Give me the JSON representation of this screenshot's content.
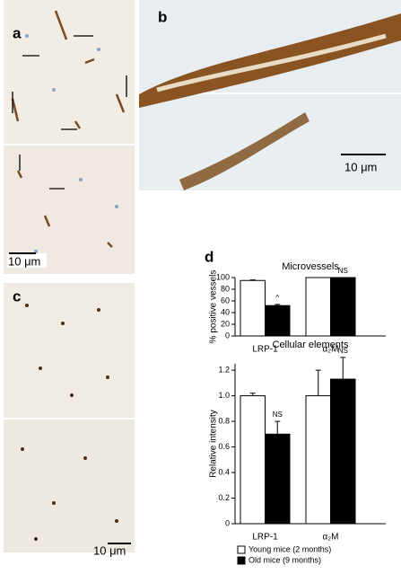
{
  "panels": {
    "a": {
      "label": "a",
      "scale": "10 μm"
    },
    "b": {
      "label": "b",
      "scale": "10 μm"
    },
    "c": {
      "label": "c",
      "scale": "10 μm"
    },
    "d": {
      "label": "d"
    }
  },
  "chart_data": [
    {
      "type": "bar",
      "title": "Microvessels",
      "y_label": "% positive vessels",
      "categories": [
        "LRP-1",
        "α₂M"
      ],
      "series": [
        {
          "name": "Young mice (2 months)",
          "color": "#ffffff",
          "values": [
            95,
            100
          ],
          "errors": [
            1,
            0
          ],
          "notes": [
            null,
            null
          ]
        },
        {
          "name": "Old mice (9 months)",
          "color": "#000000",
          "values": [
            52,
            100
          ],
          "errors": [
            2,
            0
          ],
          "notes": [
            "^",
            "NS"
          ]
        }
      ],
      "ylim": [
        0,
        100
      ],
      "yticks": [
        0,
        20,
        40,
        60,
        80,
        100
      ]
    },
    {
      "type": "bar",
      "title": "Cellular elements",
      "y_label": "Relative intensity",
      "categories": [
        "LRP-1",
        "α₂M"
      ],
      "series": [
        {
          "name": "Young mice (2 months)",
          "color": "#ffffff",
          "values": [
            1.0,
            1.0
          ],
          "errors": [
            0.02,
            0.2
          ],
          "notes": [
            null,
            null
          ]
        },
        {
          "name": "Old mice (9 months)",
          "color": "#000000",
          "values": [
            0.7,
            1.13
          ],
          "errors": [
            0.1,
            0.17
          ],
          "notes": [
            "NS",
            "NS"
          ]
        }
      ],
      "ylim": [
        0,
        1.25
      ],
      "yticks": [
        0,
        0.2,
        0.4,
        0.6,
        0.8,
        {
          "value": 1,
          "label": "1.0"
        },
        1.2
      ]
    }
  ]
}
